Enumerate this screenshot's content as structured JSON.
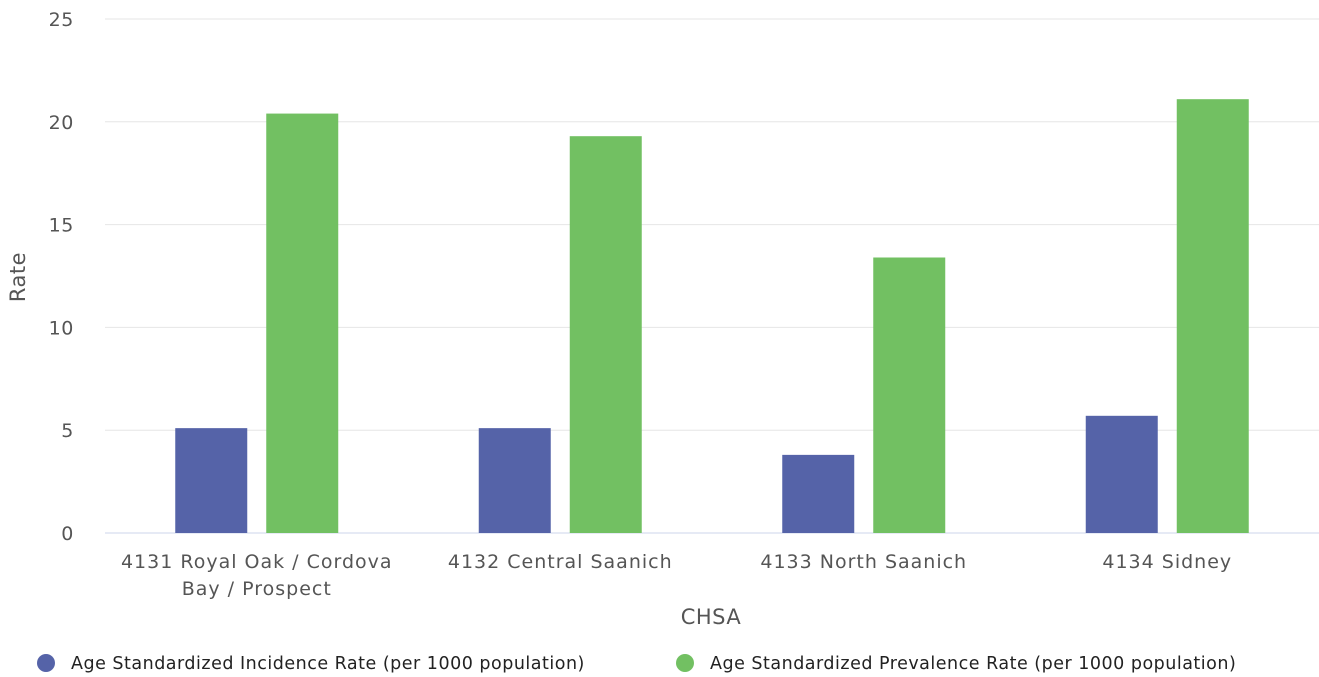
{
  "chart_data": {
    "type": "bar",
    "title": "",
    "xlabel": "CHSA",
    "ylabel": "Rate",
    "ylim": [
      0,
      25
    ],
    "yticks": [
      0,
      5,
      10,
      15,
      20,
      25
    ],
    "grid": true,
    "legend_position": "bottom",
    "categories": [
      [
        "4131 Royal Oak / Cordova",
        "Bay / Prospect"
      ],
      [
        "4132 Central Saanich"
      ],
      [
        "4133 North Saanich"
      ],
      [
        "4134 Sidney"
      ]
    ],
    "series": [
      {
        "name": "Age Standardized Incidence Rate (per 1000 population)",
        "color": "#5563a8",
        "values": [
          5.1,
          5.1,
          3.8,
          5.7
        ]
      },
      {
        "name": "Age Standardized Prevalence Rate (per 1000 population)",
        "color": "#72c062",
        "values": [
          20.4,
          19.3,
          13.4,
          21.1
        ]
      }
    ]
  }
}
